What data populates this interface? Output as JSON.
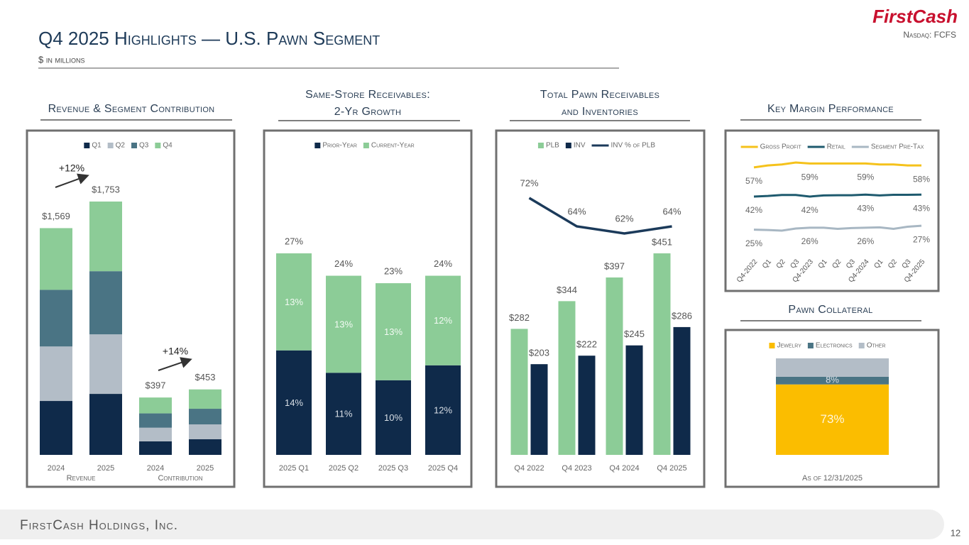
{
  "header": {
    "title": "Q4 2025 Highlights — U.S. Pawn Segment",
    "subtitle": "$ in millions",
    "logo": "FirstCash",
    "ticker": "Nasdaq: FCFS"
  },
  "chart_data": [
    {
      "type": "bar",
      "stacked": true,
      "title": "Revenue & Segment Contribution",
      "categories": [
        "2024",
        "2025",
        "2024",
        "2025"
      ],
      "group_labels": [
        "Revenue",
        "Contribution"
      ],
      "series": [
        {
          "name": "Q1",
          "color": "#0f2a4a",
          "values": [
            373,
            422,
            94,
            108
          ]
        },
        {
          "name": "Q2",
          "color": "#b3bdc7",
          "values": [
            377,
            412,
            94,
            103
          ]
        },
        {
          "name": "Q3",
          "color": "#4a7484",
          "values": [
            392,
            437,
            99,
            108
          ]
        },
        {
          "name": "Q4",
          "color": "#8ccc97",
          "values": [
            427,
            482,
            110,
            134
          ]
        }
      ],
      "totals": [
        1569,
        1753,
        397,
        453
      ],
      "total_labels": [
        "$1,569",
        "$1,753",
        "$397",
        "$453"
      ],
      "annotations": [
        "+12%",
        "+14%"
      ]
    },
    {
      "type": "bar",
      "stacked": true,
      "title": "Same-Store Receivables:\n2-Yr Growth",
      "categories": [
        "2025 Q1",
        "2025 Q2",
        "2025 Q3",
        "2025 Q4"
      ],
      "series": [
        {
          "name": "Prior-Year",
          "color": "#0f2a4a",
          "values": [
            14,
            11,
            10,
            12
          ],
          "value_labels": [
            "14%",
            "11%",
            "10%",
            "12%"
          ]
        },
        {
          "name": "Current-Year",
          "color": "#8ccc97",
          "values": [
            13,
            13,
            13,
            12
          ],
          "value_labels": [
            "13%",
            "13%",
            "13%",
            "12%"
          ]
        }
      ],
      "totals": [
        27,
        24,
        23,
        24
      ],
      "total_labels": [
        "27%",
        "24%",
        "23%",
        "24%"
      ]
    },
    {
      "type": "bar",
      "stacked": false,
      "title": "Total Pawn Receivables\nand Inventories",
      "categories": [
        "Q4 2022",
        "Q4 2023",
        "Q4 2024",
        "Q4 2025"
      ],
      "series": [
        {
          "name": "PLB",
          "type": "bar",
          "color": "#8ccc97",
          "values": [
            282,
            344,
            397,
            451
          ],
          "value_labels": [
            "$282",
            "$344",
            "$397",
            "$451"
          ]
        },
        {
          "name": "INV",
          "type": "bar",
          "color": "#0f2a4a",
          "values": [
            203,
            222,
            245,
            286
          ],
          "value_labels": [
            "$203",
            "$222",
            "$245",
            "$286"
          ]
        },
        {
          "name": "INV % of PLB",
          "type": "line",
          "axis": "y2",
          "color": "#1b3a5a",
          "values": [
            72,
            64,
            62,
            64
          ],
          "value_labels": [
            "72%",
            "64%",
            "62%",
            "64%"
          ]
        }
      ]
    },
    {
      "type": "line",
      "title": "Key Margin Performance",
      "categories": [
        "Q4-2022",
        "Q1",
        "Q2",
        "Q3",
        "Q4-2023",
        "Q1",
        "Q2",
        "Q3",
        "Q4-2024",
        "Q1",
        "Q2",
        "Q3",
        "Q4-2025"
      ],
      "series": [
        {
          "name": "Gross Profit",
          "color": "#f5c21b",
          "values": [
            57,
            58,
            58.5,
            59.5,
            59,
            59,
            59,
            59,
            59,
            58.5,
            58.5,
            58,
            58
          ],
          "value_labels": [
            "57%",
            null,
            null,
            null,
            "59%",
            null,
            null,
            null,
            "59%",
            null,
            null,
            null,
            "58%"
          ]
        },
        {
          "name": "Retail",
          "color": "#1e5a6e",
          "values": [
            42,
            42.3,
            42.8,
            42.8,
            42,
            42.6,
            42.7,
            42.7,
            43,
            42.6,
            42.9,
            42.9,
            43
          ],
          "value_labels": [
            "42%",
            null,
            null,
            null,
            "42%",
            null,
            null,
            null,
            "43%",
            null,
            null,
            null,
            "43%"
          ]
        },
        {
          "name": "Segment Pre-Tax",
          "color": "#a8b7c3",
          "values": [
            25,
            24.8,
            24.5,
            25.6,
            26,
            26,
            25.4,
            25.8,
            26,
            26.2,
            25.4,
            26.5,
            27
          ],
          "value_labels": [
            "25%",
            null,
            null,
            null,
            "26%",
            null,
            null,
            null,
            "26%",
            null,
            null,
            null,
            "27%"
          ]
        }
      ]
    },
    {
      "type": "bar",
      "stacked": true,
      "title": "Pawn Collateral",
      "categories": [
        "As of 12/31/2025"
      ],
      "series": [
        {
          "name": "Jewelry",
          "color": "#fbbd00",
          "values": [
            73
          ],
          "value_labels": [
            "73%"
          ]
        },
        {
          "name": "Electronics",
          "color": "#4a7484",
          "values": [
            8
          ],
          "value_labels": [
            "8%"
          ]
        },
        {
          "name": "Other",
          "color": "#b3bdc7",
          "values": [
            19
          ]
        }
      ]
    }
  ],
  "footer": {
    "company": "FirstCash Holdings, Inc.",
    "page": 12
  }
}
